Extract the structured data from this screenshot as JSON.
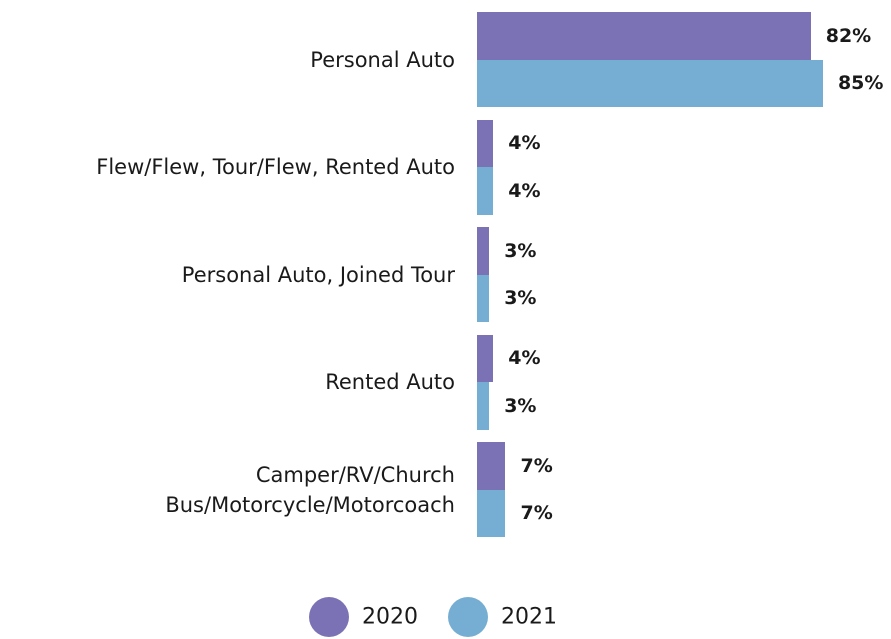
{
  "chart_data": {
    "type": "bar",
    "orientation": "horizontal",
    "categories": [
      "Personal Auto",
      "Flew/Flew, Tour/Flew, Rented Auto",
      "Personal Auto, Joined Tour",
      "Rented Auto",
      "Camper/RV/Church Bus/Motorcycle/Motorcoach"
    ],
    "series": [
      {
        "name": "2020",
        "color": "#7b72b5",
        "values": [
          82,
          4,
          3,
          4,
          7
        ],
        "value_labels": [
          "82%",
          "4%",
          "3%",
          "4%",
          "7%"
        ]
      },
      {
        "name": "2021",
        "color": "#76aed3",
        "values": [
          85,
          4,
          3,
          3,
          7
        ],
        "value_labels": [
          "85%",
          "4%",
          "3%",
          "3%",
          "7%"
        ]
      }
    ],
    "legend": "bottom"
  }
}
